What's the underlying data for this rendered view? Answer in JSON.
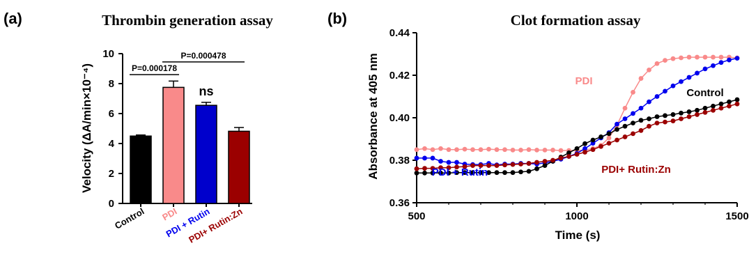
{
  "chart_data": [
    {
      "panel": "(a)",
      "type": "bar",
      "title": "Thrombin generation assay",
      "xlabel": "",
      "ylabel": "Velocity (ΔA/min×10⁻⁴)",
      "ylim": [
        0,
        10
      ],
      "yticks": [
        "0",
        "2",
        "4",
        "6",
        "8",
        "10"
      ],
      "categories": [
        "Control",
        "PDI",
        "PDI + Rutin",
        "PDI+ Rutin:Zn"
      ],
      "values": [
        4.5,
        7.75,
        6.55,
        4.82
      ],
      "errors": [
        0.07,
        0.42,
        0.2,
        0.25
      ],
      "colors": [
        "#000000",
        "#f98a8a",
        "#0000cc",
        "#9b0000"
      ],
      "label_colors": [
        "#000000",
        "#f98a8a",
        "#0000ee",
        "#9b0000"
      ],
      "annotations": [
        {
          "text": "P=0.000178",
          "from": 0,
          "to": 1,
          "y": 8.6
        },
        {
          "text": "P=0.000478",
          "from": 1,
          "to": 3,
          "y": 9.45
        }
      ],
      "bar_labels": [
        {
          "category": 2,
          "text": "ns"
        }
      ],
      "grid": false
    },
    {
      "panel": "(b)",
      "type": "line",
      "title": "Clot formation assay",
      "xlabel": "Time (s)",
      "ylabel": "Absorbance at 405 nm",
      "xlim": [
        500,
        1500
      ],
      "ylim": [
        0.36,
        0.44
      ],
      "xticks": [
        "500",
        "1000",
        "1500"
      ],
      "yticks": [
        "0.36",
        "0.38",
        "0.40",
        "0.42",
        "0.44"
      ],
      "grid": false,
      "x": [
        500,
        525,
        550,
        575,
        600,
        625,
        650,
        675,
        700,
        725,
        750,
        775,
        800,
        825,
        850,
        875,
        900,
        925,
        950,
        975,
        1000,
        1025,
        1050,
        1075,
        1100,
        1125,
        1150,
        1175,
        1200,
        1225,
        1250,
        1275,
        1300,
        1325,
        1350,
        1375,
        1400,
        1425,
        1450,
        1475,
        1500
      ],
      "series": [
        {
          "name": "PDI",
          "color": "#f98a8a",
          "values": [
            0.385,
            0.3855,
            0.385,
            0.3855,
            0.385,
            0.385,
            0.3852,
            0.385,
            0.385,
            0.3852,
            0.385,
            0.385,
            0.3848,
            0.3848,
            0.385,
            0.3848,
            0.3848,
            0.3848,
            0.3846,
            0.3846,
            0.3846,
            0.3848,
            0.3855,
            0.387,
            0.3905,
            0.3965,
            0.4045,
            0.412,
            0.4185,
            0.4225,
            0.4255,
            0.427,
            0.4278,
            0.4282,
            0.4285,
            0.4285,
            0.4285,
            0.4285,
            0.4285,
            0.4285,
            0.4282
          ]
        },
        {
          "name": "PDI + Rutin",
          "color": "#0000ee",
          "values": [
            0.381,
            0.381,
            0.381,
            0.3795,
            0.379,
            0.379,
            0.3782,
            0.378,
            0.378,
            0.3785,
            0.3778,
            0.3782,
            0.3782,
            0.3785,
            0.3785,
            0.3782,
            0.3788,
            0.3795,
            0.3805,
            0.3818,
            0.3832,
            0.3855,
            0.388,
            0.3905,
            0.393,
            0.397,
            0.3995,
            0.402,
            0.4045,
            0.4075,
            0.41,
            0.4125,
            0.415,
            0.417,
            0.419,
            0.421,
            0.423,
            0.4245,
            0.426,
            0.4272,
            0.428
          ]
        },
        {
          "name": "Control",
          "color": "#000000",
          "values": [
            0.374,
            0.374,
            0.374,
            0.374,
            0.374,
            0.3742,
            0.3742,
            0.3742,
            0.3742,
            0.3742,
            0.3742,
            0.3742,
            0.3742,
            0.3745,
            0.3748,
            0.376,
            0.3775,
            0.3795,
            0.3815,
            0.3835,
            0.3855,
            0.3878,
            0.3895,
            0.391,
            0.3925,
            0.3945,
            0.396,
            0.3975,
            0.3988,
            0.3995,
            0.4005,
            0.401,
            0.4015,
            0.4022,
            0.4028,
            0.4035,
            0.4045,
            0.4055,
            0.4065,
            0.4075,
            0.4085
          ]
        },
        {
          "name": "PDI+ Rutin:Zn",
          "color": "#9b0000",
          "values": [
            0.376,
            0.3762,
            0.3762,
            0.3765,
            0.3765,
            0.3768,
            0.377,
            0.3775,
            0.3775,
            0.3775,
            0.3775,
            0.3778,
            0.378,
            0.3782,
            0.3785,
            0.379,
            0.3795,
            0.38,
            0.381,
            0.3818,
            0.3828,
            0.3838,
            0.385,
            0.3865,
            0.388,
            0.3895,
            0.391,
            0.3925,
            0.394,
            0.396,
            0.3975,
            0.398,
            0.3985,
            0.3995,
            0.4005,
            0.4015,
            0.4025,
            0.4035,
            0.4045,
            0.4055,
            0.4065
          ]
        }
      ]
    }
  ]
}
